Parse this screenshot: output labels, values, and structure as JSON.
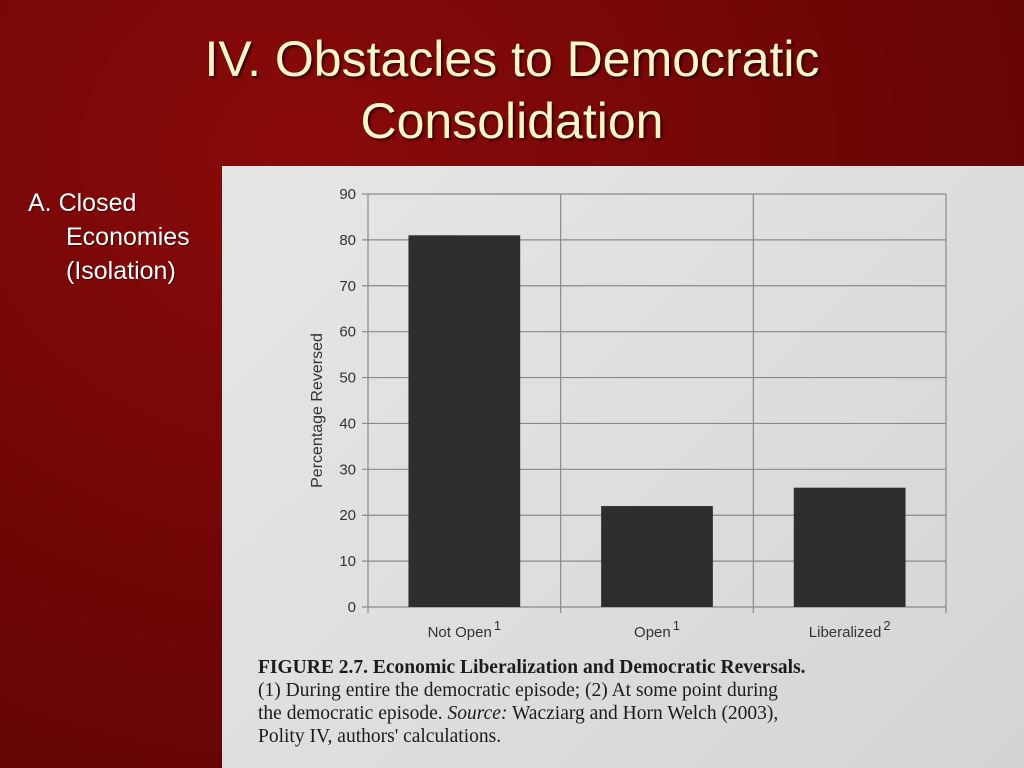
{
  "slide": {
    "title_line1": "IV. Obstacles to Democratic",
    "title_line2": "Consolidation",
    "bullet_line1": "A. Closed",
    "bullet_line2": "Economies",
    "bullet_line3": "(Isolation)"
  },
  "caption": {
    "label": "FIGURE 2.7.",
    "heading": "Economic Liberalization and Democratic Reversals.",
    "line2": "(1) During entire the democratic episode; (2) At some point during",
    "line3_a": "the democratic episode.",
    "source_label": "Source:",
    "line3_b": "Wacziarg and Horn Welch (2003),",
    "line4": "Polity IV, authors' calculations."
  },
  "colors": {
    "background": "#6e0606",
    "title": "#fdf6c8",
    "bar": "#2e2e2e",
    "grid": "#8a8a8a"
  },
  "chart_data": {
    "type": "bar",
    "categories": [
      "Not Open",
      "Open",
      "Liberalized"
    ],
    "category_superscripts": [
      "1",
      "1",
      "2"
    ],
    "values": [
      81,
      22,
      26
    ],
    "ylabel": "Percentage Reversed",
    "ylim": [
      0,
      90
    ],
    "yticks": [
      "0",
      "10",
      "20",
      "30",
      "40",
      "50",
      "60",
      "70",
      "80",
      "90"
    ],
    "grid": true
  }
}
